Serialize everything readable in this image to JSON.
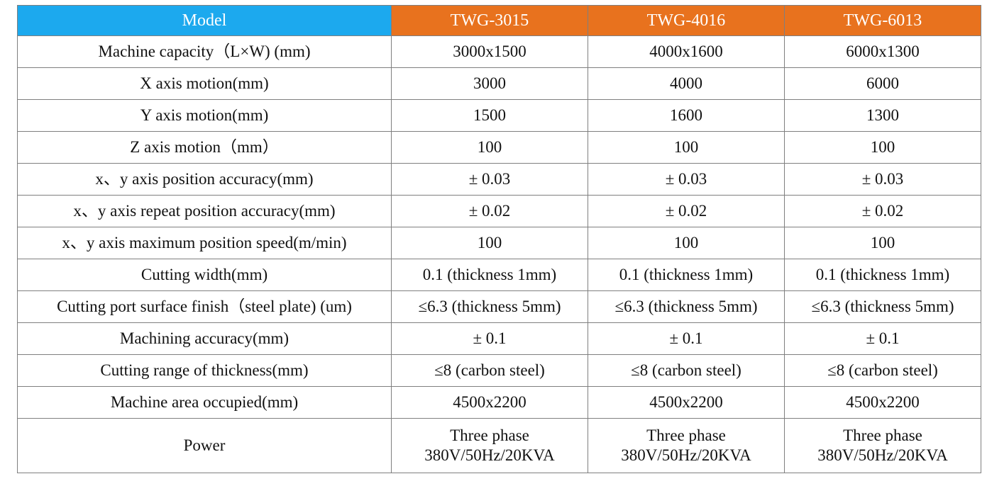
{
  "header": {
    "label": "Model",
    "models": [
      "TWG-3015",
      "TWG-4016",
      "TWG-6013"
    ]
  },
  "rows": [
    {
      "label": "Machine capacity（L×W) (mm)",
      "values": [
        "3000x1500",
        "4000x1600",
        "6000x1300"
      ]
    },
    {
      "label": "X axis motion(mm)",
      "values": [
        "3000",
        "4000",
        "6000"
      ]
    },
    {
      "label": "Y axis motion(mm)",
      "values": [
        "1500",
        "1600",
        "1300"
      ]
    },
    {
      "label": "Z axis motion（mm）",
      "values": [
        "100",
        "100",
        "100"
      ]
    },
    {
      "label": "x、y axis position accuracy(mm)",
      "values": [
        "± 0.03",
        "± 0.03",
        "± 0.03"
      ]
    },
    {
      "label": "x、y axis repeat position accuracy(mm)",
      "values": [
        "± 0.02",
        "± 0.02",
        "± 0.02"
      ]
    },
    {
      "label": "x、y axis maximum position speed(m/min)",
      "values": [
        "100",
        "100",
        "100"
      ]
    },
    {
      "label": "Cutting width(mm)",
      "values": [
        "0.1 (thickness 1mm)",
        "0.1 (thickness 1mm)",
        "0.1 (thickness 1mm)"
      ]
    },
    {
      "label": "Cutting port surface finish（steel plate) (um)",
      "values": [
        "≤6.3 (thickness 5mm)",
        "≤6.3 (thickness 5mm)",
        "≤6.3 (thickness 5mm)"
      ]
    },
    {
      "label": "Machining accuracy(mm)",
      "values": [
        "± 0.1",
        "± 0.1",
        "± 0.1"
      ]
    },
    {
      "label": "Cutting range of thickness(mm)",
      "values": [
        "≤8 (carbon steel)",
        "≤8 (carbon steel)",
        "≤8 (carbon steel)"
      ]
    },
    {
      "label": "Machine area occupied(mm)",
      "values": [
        "4500x2200",
        "4500x2200",
        "4500x2200"
      ]
    }
  ],
  "power": {
    "label": "Power",
    "values": [
      {
        "line1": "Three phase",
        "line2": "380V/50Hz/20KVA"
      },
      {
        "line1": "Three phase",
        "line2": "380V/50Hz/20KVA"
      },
      {
        "line1": "Three phase",
        "line2": "380V/50Hz/20KVA"
      }
    ]
  },
  "colors": {
    "model_header": "#1ca9ee",
    "model_columns": "#e8721e",
    "grid": "#7f7f7f"
  }
}
